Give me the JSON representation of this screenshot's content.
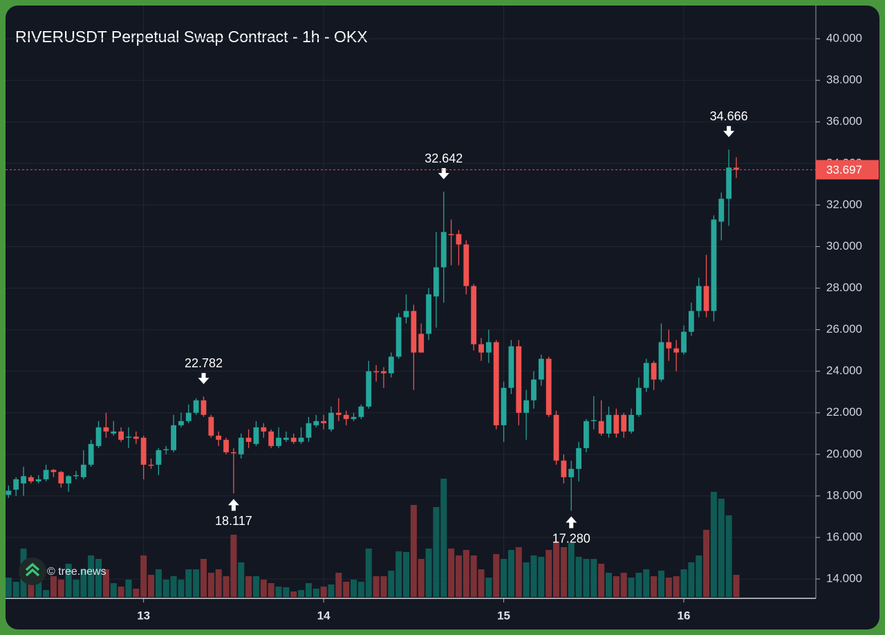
{
  "chart_data": {
    "type": "candlestick",
    "title": "RIVERUSDT Perpetual Swap Contract - 1h - OKX",
    "watermark": "© tree.news",
    "up_color": "#26a69a",
    "down_color": "#ef5350",
    "grid": true,
    "xlim": [
      -0.4,
      107.6
    ],
    "xticks": [
      {
        "value": 18,
        "label": "13"
      },
      {
        "value": 42,
        "label": "14"
      },
      {
        "value": 66,
        "label": "15"
      },
      {
        "value": 90,
        "label": "16"
      }
    ],
    "ylim": [
      13.07,
      41.6
    ],
    "yticks": [
      {
        "value": 14,
        "label": "14.000"
      },
      {
        "value": 16,
        "label": "16.000"
      },
      {
        "value": 18,
        "label": "18.000"
      },
      {
        "value": 20,
        "label": "20.000"
      },
      {
        "value": 22,
        "label": "22.000"
      },
      {
        "value": 24,
        "label": "24.000"
      },
      {
        "value": 26,
        "label": "26.000"
      },
      {
        "value": 28,
        "label": "28.000"
      },
      {
        "value": 30,
        "label": "30.000"
      },
      {
        "value": 32,
        "label": "32.000"
      },
      {
        "value": 34,
        "label": "34.000"
      },
      {
        "value": 36,
        "label": "36.000"
      },
      {
        "value": 38,
        "label": "38.000"
      },
      {
        "value": 40,
        "label": "40.000"
      }
    ],
    "open": [
      18.05,
      18.3,
      18.6,
      18.9,
      18.7,
      18.8,
      19.25,
      19.15,
      18.6,
      18.95,
      18.9,
      19.5,
      20.4,
      21.3,
      21.0,
      21.1,
      20.8,
      20.85,
      20.8,
      19.5,
      19.5,
      20.2,
      20.2,
      21.4,
      21.6,
      22.0,
      22.6,
      21.8,
      20.9,
      20.7,
      20.1,
      20.0,
      20.8,
      20.5,
      21.3,
      21.1,
      20.4,
      20.7,
      20.8,
      20.6,
      20.8,
      21.4,
      21.6,
      21.2,
      22.0,
      21.9,
      21.7,
      21.8,
      22.3,
      24.0,
      24.0,
      23.9,
      24.7,
      26.6,
      26.9,
      25.8,
      25.8,
      27.6,
      29.0,
      30.6,
      30.6,
      30.1,
      28.1,
      25.3,
      24.9,
      25.4,
      21.4,
      23.2,
      25.2,
      22.0,
      22.6,
      23.6,
      24.6,
      21.9,
      19.7,
      18.9,
      19.3,
      20.3,
      21.6,
      21.6,
      21.0,
      21.9,
      21.9,
      21.1,
      21.9,
      23.2,
      24.4,
      23.6,
      25.4,
      25.1,
      24.9,
      25.9,
      26.9,
      28.1,
      26.9,
      31.2,
      32.3,
      33.8
    ],
    "high": [
      18.5,
      18.9,
      19.4,
      19.0,
      19.0,
      19.5,
      19.3,
      19.2,
      19.0,
      19.2,
      20.2,
      20.7,
      21.6,
      22.0,
      21.6,
      21.3,
      21.3,
      21.1,
      20.9,
      19.8,
      20.3,
      20.4,
      21.9,
      22.0,
      22.4,
      22.7,
      22.782,
      21.9,
      21.1,
      20.8,
      20.3,
      21.0,
      21.2,
      21.6,
      21.5,
      21.2,
      21.3,
      21.1,
      21.0,
      21.3,
      21.8,
      21.9,
      21.9,
      22.3,
      22.7,
      22.1,
      22.0,
      22.4,
      24.5,
      24.3,
      24.2,
      24.9,
      26.8,
      27.7,
      27.2,
      26.3,
      28.0,
      30.7,
      32.642,
      31.3,
      30.8,
      30.3,
      28.2,
      25.6,
      26.0,
      25.5,
      23.5,
      25.5,
      25.5,
      23.1,
      24.0,
      24.8,
      24.7,
      22.1,
      20.0,
      19.7,
      20.6,
      21.7,
      22.8,
      22.6,
      22.3,
      22.2,
      22.0,
      22.2,
      23.7,
      24.6,
      24.5,
      26.3,
      26.0,
      25.5,
      26.2,
      27.3,
      28.5,
      29.6,
      31.5,
      32.6,
      34.666,
      34.3
    ],
    "low": [
      17.9,
      18.0,
      18.0,
      18.6,
      18.6,
      18.7,
      18.9,
      18.4,
      18.2,
      18.8,
      18.8,
      19.4,
      20.3,
      20.8,
      20.9,
      20.6,
      20.3,
      20.5,
      18.8,
      19.3,
      19.0,
      20.0,
      20.1,
      21.3,
      21.5,
      21.9,
      21.8,
      20.8,
      20.4,
      20.0,
      18.117,
      19.8,
      20.3,
      20.4,
      20.8,
      20.3,
      20.3,
      20.6,
      20.5,
      20.5,
      20.6,
      21.3,
      21.2,
      21.1,
      21.6,
      21.4,
      21.6,
      21.7,
      22.2,
      23.5,
      23.2,
      23.7,
      24.6,
      26.3,
      23.1,
      24.9,
      25.5,
      26.1,
      27.3,
      29.1,
      29.1,
      27.7,
      25.0,
      24.5,
      24.4,
      21.2,
      20.6,
      22.9,
      21.4,
      20.7,
      22.2,
      23.3,
      21.8,
      19.5,
      18.6,
      17.28,
      18.7,
      20.1,
      21.2,
      20.9,
      20.8,
      20.8,
      20.8,
      21.0,
      21.8,
      23.0,
      23.1,
      23.5,
      24.5,
      24.0,
      24.8,
      25.7,
      26.6,
      26.6,
      26.4,
      30.3,
      31.0,
      33.3
    ],
    "close": [
      18.25,
      18.8,
      18.95,
      18.7,
      18.8,
      19.25,
      19.15,
      18.6,
      18.95,
      19.0,
      19.5,
      20.5,
      21.3,
      21.1,
      21.1,
      20.7,
      20.85,
      20.75,
      19.5,
      19.45,
      20.2,
      20.25,
      21.4,
      21.6,
      22.0,
      22.6,
      21.9,
      20.9,
      20.7,
      20.1,
      20.05,
      20.8,
      20.6,
      21.3,
      21.1,
      20.4,
      20.8,
      20.8,
      20.6,
      20.8,
      21.5,
      21.6,
      21.5,
      22.0,
      21.9,
      21.7,
      21.8,
      22.3,
      24.0,
      23.95,
      23.9,
      24.7,
      26.6,
      26.9,
      24.9,
      24.9,
      27.7,
      29.0,
      30.7,
      30.55,
      30.1,
      28.1,
      25.3,
      24.9,
      25.4,
      21.4,
      23.2,
      25.2,
      22.0,
      22.6,
      23.6,
      24.6,
      21.9,
      19.7,
      18.9,
      19.3,
      20.3,
      21.6,
      21.65,
      21.0,
      21.9,
      21.0,
      21.1,
      21.9,
      23.2,
      24.4,
      23.6,
      25.4,
      25.1,
      24.9,
      25.9,
      26.9,
      28.1,
      26.9,
      31.3,
      32.3,
      33.8,
      33.697
    ],
    "volume": [
      28,
      22,
      70,
      30,
      25,
      10,
      30,
      25,
      48,
      25,
      40,
      60,
      55,
      40,
      20,
      15,
      25,
      12,
      60,
      32,
      40,
      25,
      30,
      25,
      40,
      40,
      55,
      35,
      40,
      30,
      90,
      50,
      30,
      30,
      25,
      20,
      15,
      14,
      8,
      10,
      20,
      12,
      15,
      18,
      35,
      22,
      25,
      22,
      70,
      30,
      30,
      38,
      66,
      65,
      133,
      55,
      70,
      130,
      171,
      70,
      60,
      68,
      60,
      40,
      28,
      62,
      55,
      68,
      72,
      50,
      60,
      58,
      68,
      80,
      72,
      78,
      58,
      55,
      55,
      48,
      35,
      30,
      35,
      28,
      35,
      40,
      30,
      38,
      28,
      30,
      40,
      50,
      60,
      97,
      152,
      142,
      118,
      32
    ],
    "annotations": [
      {
        "text": "22.782",
        "value": 22.782,
        "x": 26,
        "kind": "high"
      },
      {
        "text": "18.117",
        "value": 18.117,
        "x": 30,
        "kind": "low"
      },
      {
        "text": "32.642",
        "value": 32.642,
        "x": 58,
        "kind": "high"
      },
      {
        "text": "17.280",
        "value": 17.28,
        "x": 75,
        "kind": "low"
      },
      {
        "text": "34.666",
        "value": 34.666,
        "x": 96,
        "kind": "high"
      }
    ],
    "last_price": {
      "value": 33.697,
      "label": "33.697",
      "color": "#ef5350"
    }
  }
}
